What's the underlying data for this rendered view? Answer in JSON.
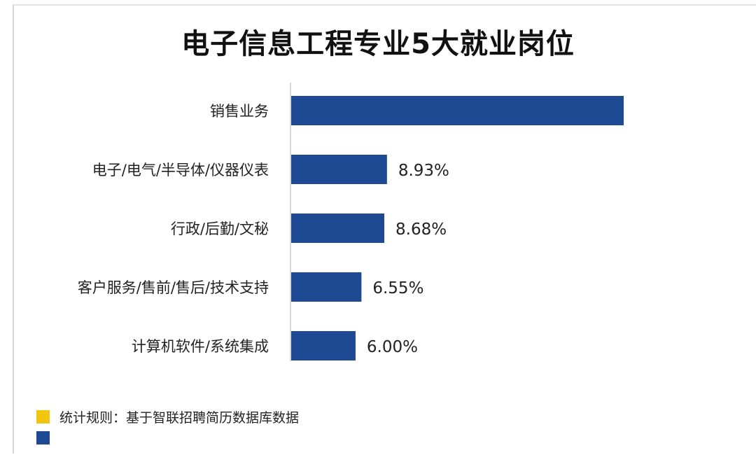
{
  "chart_data": {
    "type": "bar",
    "orientation": "horizontal",
    "title": "电子信息工程专业5大就业岗位",
    "categories": [
      "销售业务",
      "电子/电气/半导体/仪器仪表",
      "行政/后勤/文秘",
      "客户服务/售前/售后/技术支持",
      "计算机软件/系统集成"
    ],
    "values": [
      31.0,
      8.93,
      8.68,
      6.55,
      6.0
    ],
    "value_labels": [
      "",
      "8.93%",
      "8.68%",
      "6.55%",
      "6.00%"
    ],
    "unit": "%",
    "xlim": [
      0,
      31.0
    ],
    "bar_color": "#1d4a92",
    "grid": false,
    "legend_position": "bottom-left"
  },
  "legend": {
    "items": [
      {
        "label": "统计规则：基于智联招聘简历数据库数据",
        "color": "#f2c50f"
      },
      {
        "label": "",
        "color": "#1d4a92"
      }
    ]
  }
}
